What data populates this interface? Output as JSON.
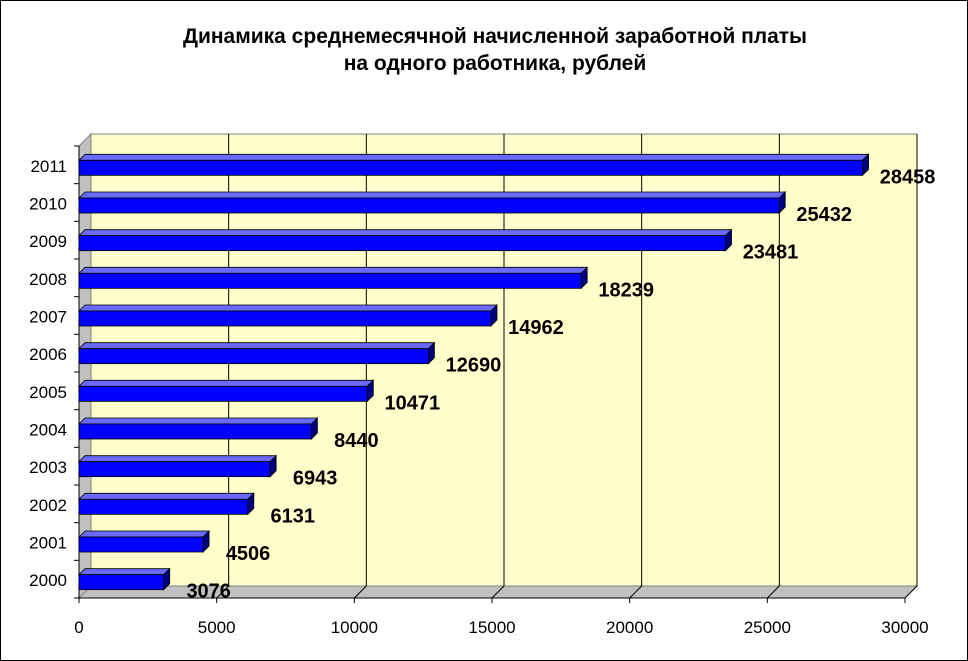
{
  "chart_data": {
    "type": "bar",
    "orientation": "horizontal",
    "title_lines": [
      "Динамика среднемесячной начисленной заработной платы",
      "на одного работника, рублей"
    ],
    "categories": [
      "2000",
      "2001",
      "2002",
      "2003",
      "2004",
      "2005",
      "2006",
      "2007",
      "2008",
      "2009",
      "2010",
      "2011"
    ],
    "values": [
      3076,
      4506,
      6131,
      6943,
      8440,
      10471,
      12690,
      14962,
      18239,
      23481,
      25432,
      28458
    ],
    "x_ticks": [
      "0",
      "5000",
      "10000",
      "15000",
      "20000",
      "25000",
      "30000"
    ],
    "xlim": [
      0,
      30000
    ],
    "xlabel": "",
    "ylabel": "",
    "grid": "vertical major gridlines",
    "legend": "none",
    "style": "3d",
    "colors": {
      "bar_front": "#0000ff",
      "bar_top": "#6a6aff",
      "bar_side": "#00007f",
      "plot_back_wall": "#ffffcc",
      "plot_floor": "#c0c0c0"
    }
  }
}
